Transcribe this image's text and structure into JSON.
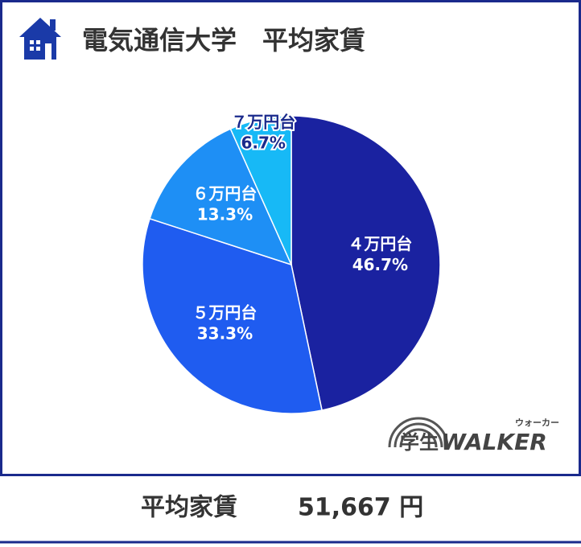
{
  "chart_data": {
    "type": "pie",
    "title": "電気通信大学　平均家賃",
    "categories": [
      "４万円台",
      "５万円台",
      "６万円台",
      "７万円台"
    ],
    "values": [
      46.7,
      33.3,
      13.3,
      6.7
    ],
    "value_labels": [
      "46.7%",
      "33.3%",
      "13.3%",
      "6.7%"
    ],
    "colors": [
      "#1a22a0",
      "#1f5cf0",
      "#1e8ff5",
      "#17b9f6"
    ]
  },
  "footer": {
    "label": "平均家賃",
    "value": "51,667 円"
  },
  "logo": {
    "text": "学生",
    "brand": "WALKER",
    "reading": "ウォーカー"
  }
}
